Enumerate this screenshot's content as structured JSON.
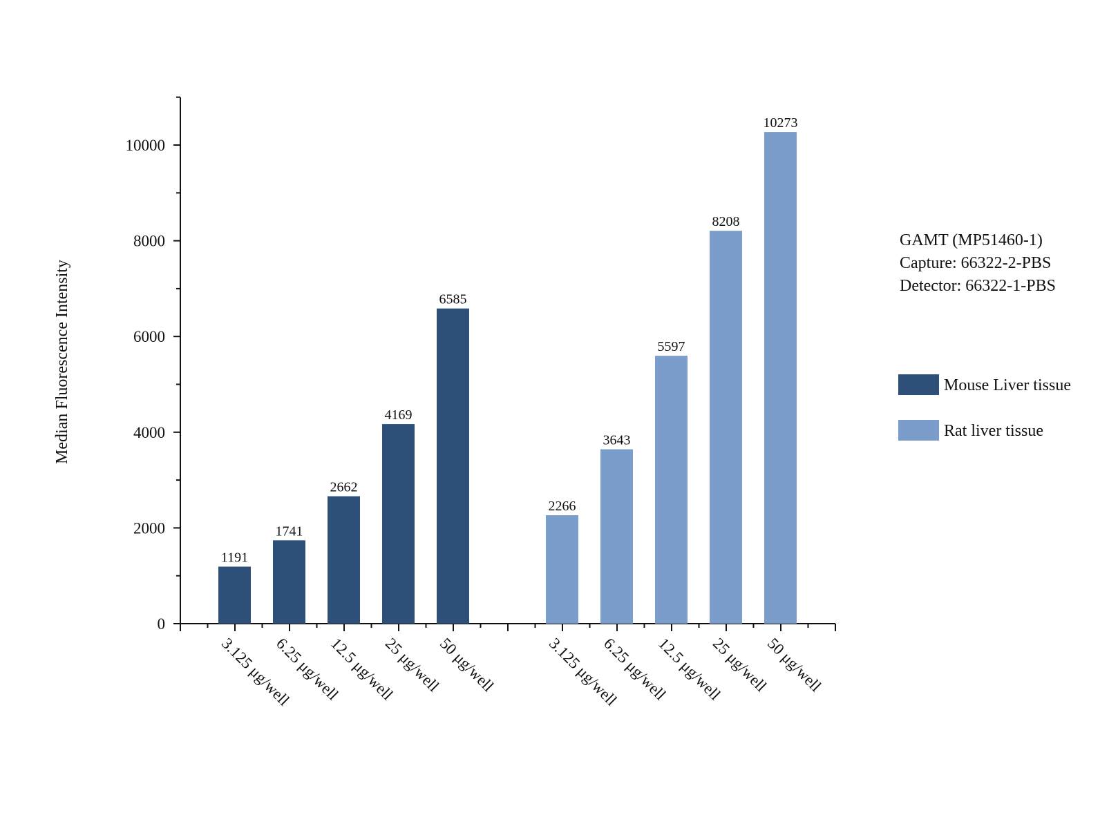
{
  "chart_data": {
    "type": "bar",
    "title": "",
    "xlabel": "",
    "ylabel": "Median Fluorescence Intensity",
    "ylim": [
      0,
      11000
    ],
    "yticks": [
      0,
      2000,
      4000,
      6000,
      8000,
      10000
    ],
    "grid": false,
    "categories": [
      "3.125 μg/well",
      "6.25 μg/well",
      "12.5 μg/well",
      "25 μg/well",
      "50 μg/well"
    ],
    "series": [
      {
        "name": "Mouse Liver tissue",
        "color": "#2e4f78",
        "values": [
          1191,
          1741,
          2662,
          4169,
          6585
        ]
      },
      {
        "name": "Rat liver tissue",
        "color": "#7b9dcb",
        "values": [
          2266,
          3643,
          5597,
          8208,
          10273
        ]
      }
    ],
    "annotation": [
      "GAMT (MP51460-1)",
      "Capture: 66322-2-PBS",
      "Detector: 66322-1-PBS"
    ],
    "legend_position": "right"
  }
}
